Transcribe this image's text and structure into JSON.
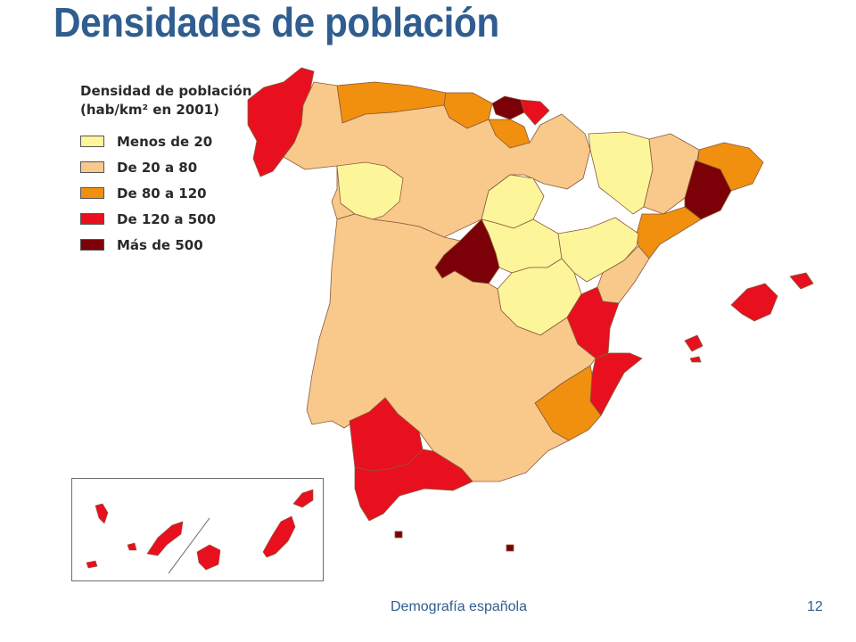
{
  "slide": {
    "title": "Densidades de población",
    "footer": "Demografía española",
    "page_number": "12"
  },
  "legend": {
    "title_line1": "Densidad de población",
    "title_line2": "(hab/km² en 2001)",
    "items": [
      {
        "label": "Menos de 20",
        "color": "#fdf59a"
      },
      {
        "label": "De 20 a 80",
        "color": "#f9c98c"
      },
      {
        "label": "De 80 a 120",
        "color": "#f0900e"
      },
      {
        "label": "De 120 a 500",
        "color": "#e8101e"
      },
      {
        "label": "Más de 500",
        "color": "#7b0007"
      }
    ]
  },
  "map": {
    "subject": "Spain population density by province",
    "border_color": "#8a5a3a"
  }
}
